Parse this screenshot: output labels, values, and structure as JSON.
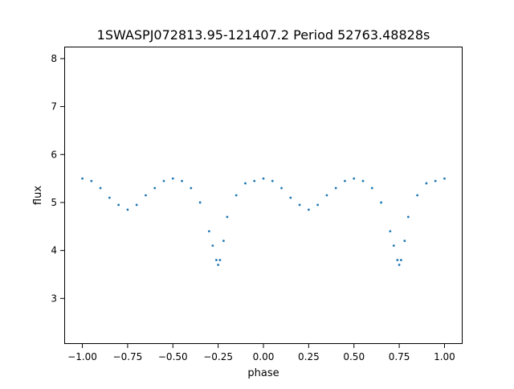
{
  "chart_data": {
    "type": "scatter",
    "title": "1SWASPJ072813.95-121407.2 Period 52763.48828s",
    "xlabel": "phase",
    "ylabel": "flux",
    "xlim": [
      -1.1,
      1.1
    ],
    "ylim": [
      2.05,
      8.25
    ],
    "xticks": [
      -1.0,
      -0.75,
      -0.5,
      -0.25,
      0.0,
      0.25,
      0.5,
      0.75,
      1.0
    ],
    "xtick_labels": [
      "−1.00",
      "−0.75",
      "−0.50",
      "−0.25",
      "0.00",
      "0.25",
      "0.50",
      "0.75",
      "1.00"
    ],
    "yticks": [
      3,
      4,
      5,
      6,
      7,
      8
    ],
    "ytick_labels": [
      "3",
      "4",
      "5",
      "6",
      "7",
      "8"
    ],
    "grid": false,
    "legend": "none",
    "marker_color": "#1f77b4",
    "series": [
      {
        "x": [
          -1.0,
          -0.95,
          -0.9,
          -0.85,
          -0.8,
          -0.75,
          -0.7,
          -0.65,
          -0.6,
          -0.55,
          -0.5,
          -0.45,
          -0.4,
          -0.35,
          -0.3,
          -0.28,
          -0.26,
          -0.25,
          -0.24,
          -0.22,
          -0.2,
          -0.15,
          -0.1,
          -0.05,
          0.0,
          0.05,
          0.1,
          0.15,
          0.2,
          0.25,
          0.3,
          0.35,
          0.4,
          0.45,
          0.5,
          0.55,
          0.6,
          0.65,
          0.7,
          0.72,
          0.74,
          0.75,
          0.76,
          0.78,
          0.8,
          0.85,
          0.9,
          0.95,
          1.0
        ],
        "y": [
          5.5,
          5.45,
          5.3,
          5.1,
          4.95,
          4.85,
          4.95,
          5.15,
          5.3,
          5.45,
          5.5,
          5.45,
          5.3,
          5.0,
          4.4,
          4.1,
          3.8,
          3.7,
          3.8,
          4.2,
          4.7,
          5.15,
          5.4,
          5.45,
          5.5,
          5.45,
          5.3,
          5.1,
          4.95,
          4.85,
          4.95,
          5.15,
          5.3,
          5.45,
          5.5,
          5.45,
          5.3,
          5.0,
          4.4,
          4.1,
          3.8,
          3.7,
          3.8,
          4.2,
          4.7,
          5.15,
          5.4,
          5.45,
          5.5
        ]
      }
    ]
  }
}
